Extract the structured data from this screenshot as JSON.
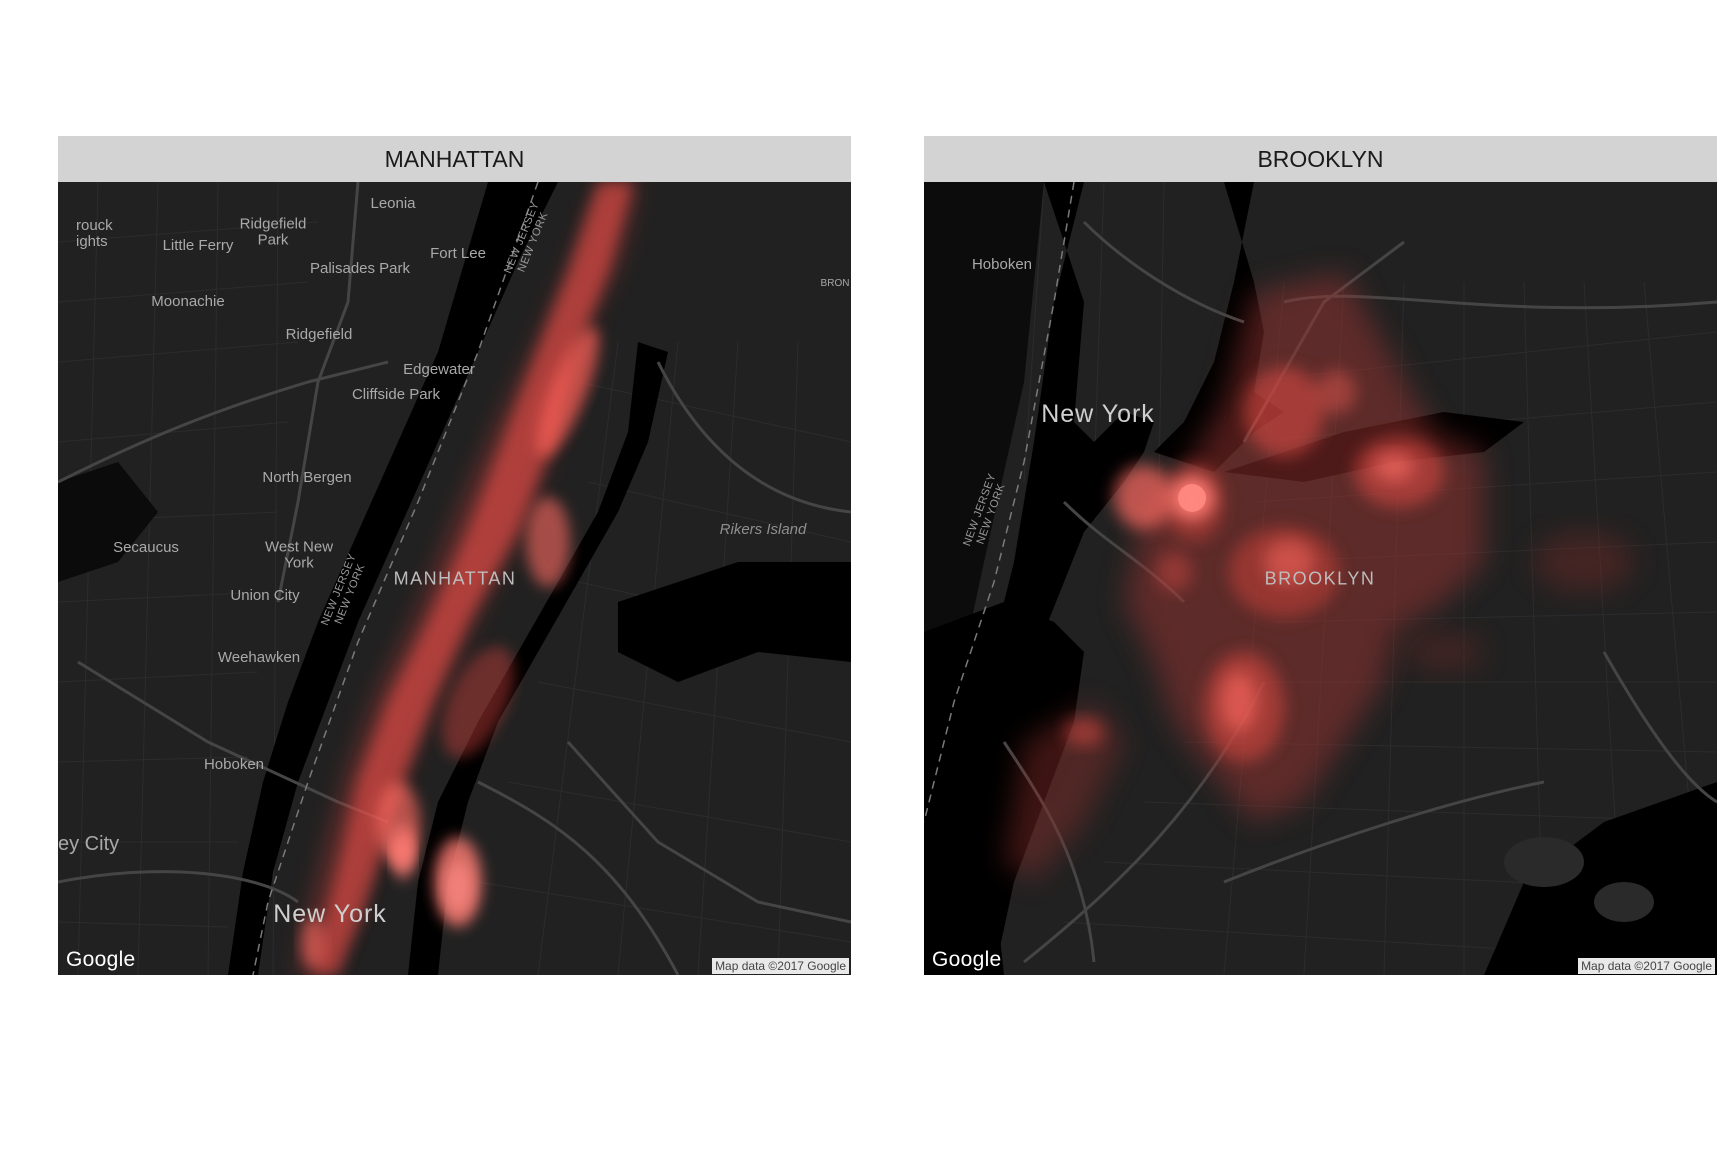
{
  "panels": [
    {
      "title": "MANHATTAN",
      "labels": {
        "rutherford_heights": "rouck\nights",
        "ridgefield_park": "Ridgefield\nPark",
        "leonia": "Leonia",
        "little_ferry": "Little Ferry",
        "fort_lee": "Fort Lee",
        "palisades_park": "Palisades Park",
        "moonachie": "Moonachie",
        "ridgefield": "Ridgefield",
        "edgewater": "Edgewater",
        "cliffside_park": "Cliffside Park",
        "north_bergen": "North Bergen",
        "secaucus": "Secaucus",
        "west_new_york": "West New\nYork",
        "union_city": "Union City",
        "weehawken": "Weehawken",
        "hoboken": "Hoboken",
        "jersey_city": "ey City",
        "new_york": "New York",
        "manhattan": "MANHATTAN",
        "rikers_island": "Rikers Island",
        "bronx": "BRON",
        "state_line_1": "NEW JERSEY\nNEW YORK",
        "state_line_2": "NEW JERSEY\nNEW YORK"
      },
      "google_logo": "Google",
      "attribution": "Map data ©2017 Google"
    },
    {
      "title": "BROOKLYN",
      "labels": {
        "hoboken": "Hoboken",
        "new_york": "New York",
        "brooklyn": "BROOKLYN",
        "state_line": "NEW JERSEY\nNEW YORK"
      },
      "google_logo": "Google",
      "attribution": "Map data ©2017 Google"
    }
  ],
  "colors": {
    "map_background": "#212121",
    "water": "#000000",
    "roads": "#3c3c3c",
    "major_roads": "#4a4a4a",
    "heat_density": "#ff5a52",
    "strip_background": "#d3d3d3"
  }
}
